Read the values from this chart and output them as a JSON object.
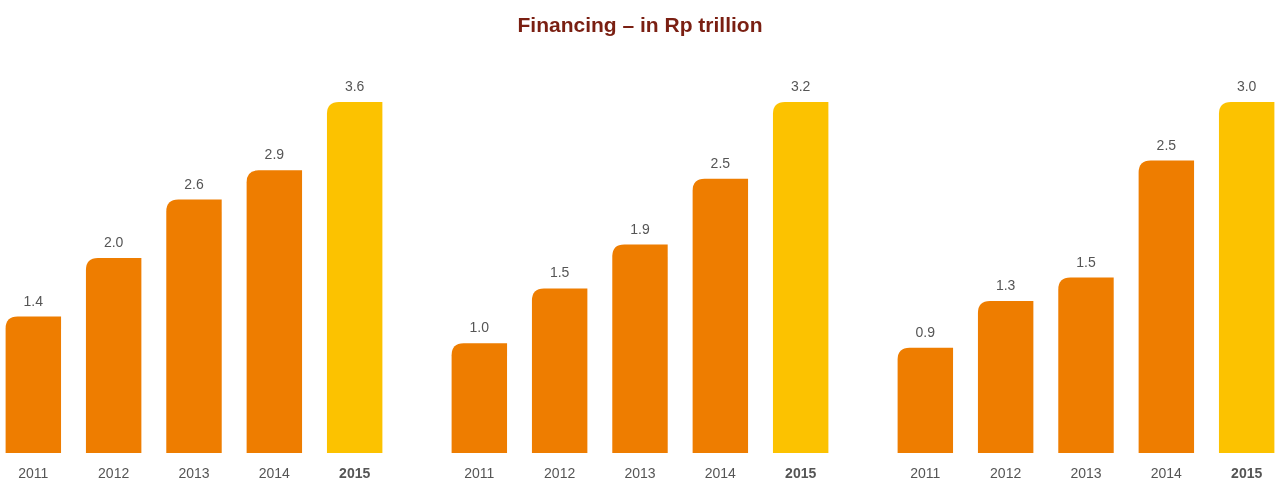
{
  "chart_data": [
    {
      "type": "bar",
      "categories": [
        "2011",
        "2012",
        "2013",
        "2014",
        "2015"
      ],
      "values": [
        1.4,
        2.0,
        2.6,
        2.9,
        3.6
      ],
      "value_labels": [
        "1.4",
        "2.0",
        "2.6",
        "2.9",
        "3.6"
      ],
      "colors": [
        "#ee7d00",
        "#ee7d00",
        "#ee7d00",
        "#ee7d00",
        "#fcc200"
      ]
    },
    {
      "type": "bar",
      "title": "Financing – in Rp trillion",
      "categories": [
        "2011",
        "2012",
        "2013",
        "2014",
        "2015"
      ],
      "values": [
        1.0,
        1.5,
        1.9,
        2.5,
        3.2
      ],
      "value_labels": [
        "1.0",
        "1.5",
        "1.9",
        "2.5",
        "3.2"
      ],
      "colors": [
        "#ee7d00",
        "#ee7d00",
        "#ee7d00",
        "#ee7d00",
        "#fcc200"
      ]
    },
    {
      "type": "bar",
      "categories": [
        "2011",
        "2012",
        "2013",
        "2014",
        "2015"
      ],
      "values": [
        0.9,
        1.3,
        1.5,
        2.5,
        3.0
      ],
      "value_labels": [
        "0.9",
        "1.3",
        "1.5",
        "2.5",
        "3.0"
      ],
      "colors": [
        "#ee7d00",
        "#ee7d00",
        "#ee7d00",
        "#ee7d00",
        "#fcc200"
      ]
    }
  ]
}
